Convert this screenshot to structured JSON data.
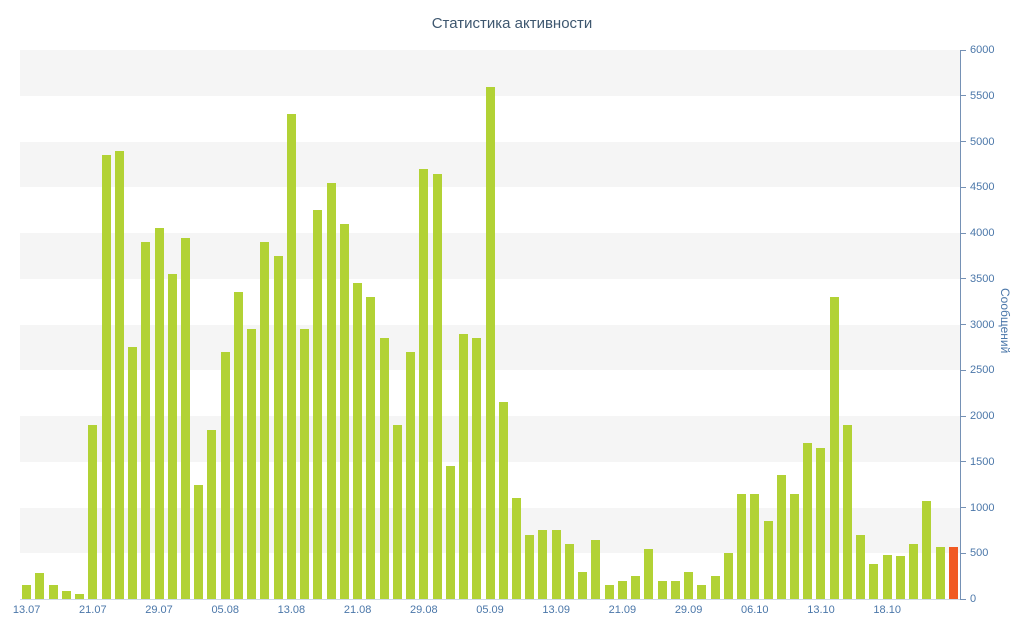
{
  "chart_data": {
    "type": "bar",
    "title": "Статистика активности",
    "ylabel": "Сообщений",
    "xlabel": "",
    "ylim": [
      0,
      6000
    ],
    "ytick_step": 500,
    "legend": "none",
    "grid": "alternating horizontal bands",
    "bar_color": "#b2d235",
    "last_bar_color": "#f15a24",
    "band_color": "#f5f5f5",
    "x_tick_every": 5,
    "x_tick_labels": [
      "13.07",
      "21.07",
      "29.07",
      "05.08",
      "13.08",
      "21.08",
      "29.08",
      "05.09",
      "13.09",
      "21.09",
      "29.09",
      "06.10",
      "13.10",
      "18.10"
    ],
    "values": [
      150,
      280,
      150,
      90,
      50,
      1900,
      4850,
      4900,
      2750,
      3900,
      4050,
      3550,
      3950,
      1250,
      1850,
      2700,
      3350,
      2950,
      3900,
      3750,
      5300,
      2950,
      4250,
      4550,
      4100,
      3450,
      3300,
      2850,
      1900,
      2700,
      4700,
      4650,
      1450,
      2900,
      2850,
      5600,
      2150,
      1100,
      700,
      750,
      750,
      600,
      300,
      650,
      150,
      200,
      250,
      550,
      200,
      200,
      300,
      150,
      250,
      500,
      1150,
      1150,
      850,
      1350,
      1150,
      1700,
      1650,
      3300,
      1900,
      700,
      380,
      480,
      470,
      600,
      1070,
      570,
      570
    ]
  },
  "colors": {
    "title": "#3e576f",
    "axis_labels": "#4b77a9",
    "axis_line": "#7591b5",
    "band": "#f5f5f5",
    "bar": "#b2d235",
    "last_bar": "#f15a24"
  }
}
